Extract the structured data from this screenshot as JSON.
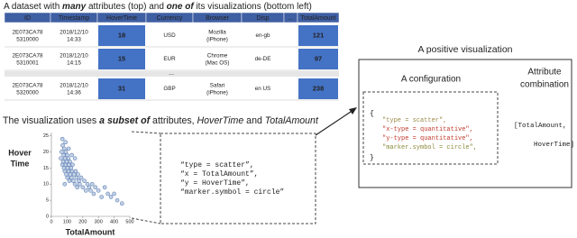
{
  "title_parts": [
    {
      "text": "A dataset with "
    },
    {
      "text": "many",
      "em": true
    },
    {
      "text": " attributes (top) and "
    },
    {
      "text": "one of",
      "em": true
    },
    {
      "text": " its visualizations (bottom left)"
    }
  ],
  "table": {
    "header": [
      "ID",
      "Timestamp",
      "HoverTime",
      "Currency",
      "Browser",
      "Disp",
      "...",
      "TotalAmount"
    ],
    "highlight_columns": [
      2,
      7
    ],
    "rows": [
      [
        "2E073CA78 5310000",
        "2018/12/10 14:33",
        "18",
        "USD",
        "Mozilla (iPhone)",
        "en-gb",
        null,
        "121"
      ],
      [
        "2E073CA78 5310001",
        "2018/12/10 14:15",
        "15",
        "EUR",
        "Chrome (Mac OS)",
        "de-DE",
        null,
        "97"
      ],
      [
        "2E073CA78 5320000",
        "2018/12/10 14:36",
        "31",
        "GBP",
        "Safari (iPhone)",
        "en US",
        null,
        "238"
      ]
    ],
    "ellipsis": "..."
  },
  "subset_parts": [
    {
      "text": "The visualization uses "
    },
    {
      "text": "a subset of",
      "em": true
    },
    {
      "text": " attributes, "
    },
    {
      "text": "HoverTime",
      "it": true
    },
    {
      "text": " and "
    },
    {
      "text": "TotalAmount",
      "it": true
    }
  ],
  "scatter": {
    "y_label": [
      "Hover",
      "Time"
    ],
    "x_label": "TotalAmount",
    "xlim": [
      0,
      500
    ],
    "ylim": [
      0,
      26
    ],
    "xticks": [
      0,
      100,
      200,
      300,
      400,
      500
    ],
    "yticks": [
      0,
      5,
      10,
      15,
      20,
      25
    ],
    "color": "#5b7fb5",
    "x": [
      60,
      65,
      70,
      72,
      75,
      78,
      80,
      82,
      85,
      88,
      90,
      92,
      95,
      98,
      100,
      102,
      105,
      108,
      110,
      112,
      115,
      118,
      120,
      125,
      128,
      130,
      135,
      140,
      145,
      150,
      155,
      160,
      165,
      170,
      175,
      180,
      190,
      200,
      210,
      220,
      230,
      240,
      250,
      260,
      270,
      280,
      300,
      320,
      340,
      360,
      380,
      400,
      420,
      450,
      70,
      90,
      110,
      130,
      150,
      85
    ],
    "y": [
      18,
      20,
      16,
      22,
      17,
      19,
      15,
      21,
      14,
      18,
      16,
      20,
      13,
      17,
      19,
      12,
      15,
      18,
      14,
      16,
      11,
      17,
      13,
      15,
      12,
      14,
      16,
      11,
      13,
      10,
      14,
      12,
      9,
      13,
      11,
      10,
      12,
      9,
      11,
      8,
      10,
      9,
      8,
      10,
      7,
      9,
      8,
      6,
      9,
      7,
      6,
      7,
      5,
      4,
      24,
      23,
      21,
      19,
      18,
      10
    ]
  },
  "config_left": [
    "“type = scatter”,",
    "“x = TotalAmount”,",
    "“y = HoverTime”,",
    "“marker.symbol = circle”"
  ],
  "positive": {
    "title": "A positive visualization",
    "config_title": "A configuration",
    "attr_title": [
      "Attribute",
      "combination"
    ],
    "brace_open": "{",
    "brace_close": "}",
    "config": [
      {
        "text": "\"type = scatter\",",
        "color": "#9c8a4a"
      },
      {
        "text": "\"x-type = quantitative\",",
        "color": "#c0392b"
      },
      {
        "text": "\"y-type = quantitative\",",
        "color": "#c0392b"
      },
      {
        "text": "\"marker.symbol = circle\",",
        "color": "#8a8a3a"
      }
    ],
    "attrs": [
      "[TotalAmount,",
      "HoverTime]"
    ]
  }
}
